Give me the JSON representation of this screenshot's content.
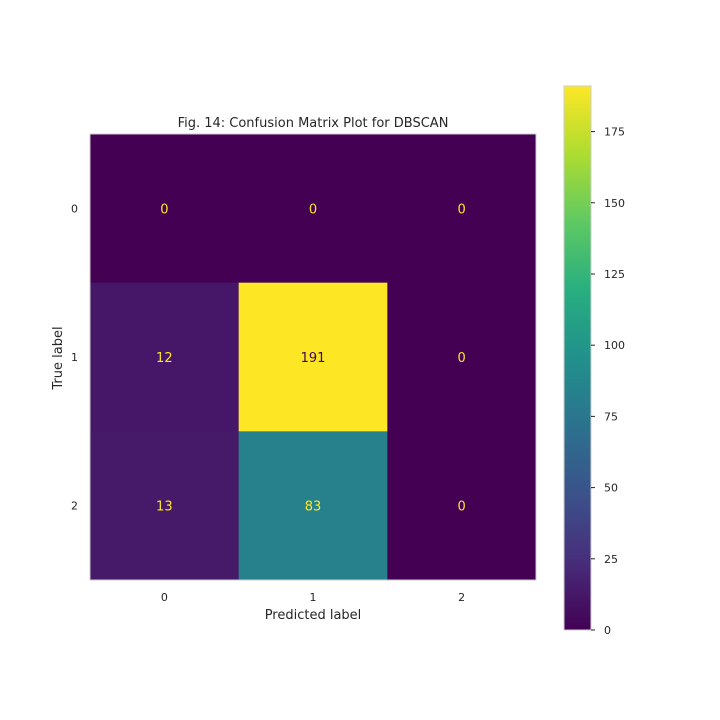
{
  "chart_data": {
    "type": "heatmap",
    "title": "Fig. 14: Confusion Matrix Plot for DBSCAN",
    "xlabel": "Predicted label",
    "ylabel": "True label",
    "x_categories": [
      "0",
      "1",
      "2"
    ],
    "y_categories": [
      "0",
      "1",
      "2"
    ],
    "matrix": [
      [
        0,
        0,
        0
      ],
      [
        12,
        191,
        0
      ],
      [
        13,
        83,
        0
      ]
    ],
    "colormap": "viridis",
    "colorbar": {
      "range": [
        0,
        191
      ],
      "ticks": [
        "0",
        "25",
        "50",
        "75",
        "100",
        "125",
        "150",
        "175"
      ]
    },
    "grid": false,
    "text_colors": {
      "on_dark": "#fde725",
      "on_light": "#440154"
    }
  }
}
